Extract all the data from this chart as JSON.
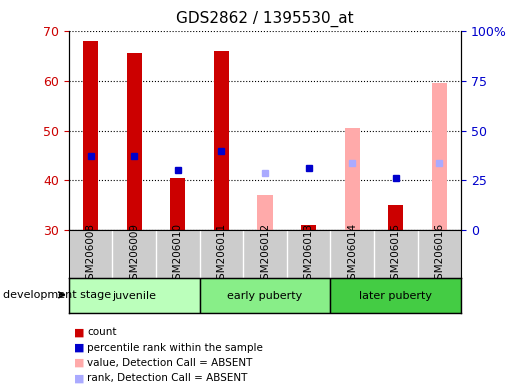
{
  "title": "GDS2862 / 1395530_at",
  "samples": [
    "GSM206008",
    "GSM206009",
    "GSM206010",
    "GSM206011",
    "GSM206012",
    "GSM206013",
    "GSM206014",
    "GSM206015",
    "GSM206016"
  ],
  "count": {
    "GSM206008": 68,
    "GSM206009": 65.5,
    "GSM206010": 40.5,
    "GSM206011": 66,
    "GSM206012": null,
    "GSM206013": 31,
    "GSM206014": null,
    "GSM206015": 35,
    "GSM206016": null
  },
  "percentile_rank": {
    "GSM206008": 45,
    "GSM206009": 45,
    "GSM206010": 42,
    "GSM206011": 46,
    "GSM206012": null,
    "GSM206013": 42.5,
    "GSM206014": null,
    "GSM206015": 40.5,
    "GSM206016": null
  },
  "value_absent": {
    "GSM206008": null,
    "GSM206009": null,
    "GSM206010": null,
    "GSM206011": null,
    "GSM206012": 37,
    "GSM206013": null,
    "GSM206014": 50.5,
    "GSM206015": null,
    "GSM206016": 59.5
  },
  "rank_absent": {
    "GSM206008": null,
    "GSM206009": null,
    "GSM206010": null,
    "GSM206011": null,
    "GSM206012": 41.5,
    "GSM206013": null,
    "GSM206014": 43.5,
    "GSM206015": null,
    "GSM206016": 43.5
  },
  "ylim": [
    30,
    70
  ],
  "yticks_left": [
    30,
    40,
    50,
    60,
    70
  ],
  "yticks_right": [
    0,
    25,
    50,
    75,
    100
  ],
  "count_color": "#cc0000",
  "percentile_color": "#0000cc",
  "value_absent_color": "#ffaaaa",
  "rank_absent_color": "#aaaaff",
  "bar_width": 0.35,
  "juvenile_color": "#bbffbb",
  "early_color": "#88ee88",
  "later_color": "#44cc44",
  "groups_def": [
    {
      "label": "juvenile",
      "start": 0,
      "end": 2,
      "color": "#bbffbb"
    },
    {
      "label": "early puberty",
      "start": 3,
      "end": 5,
      "color": "#88ee88"
    },
    {
      "label": "later puberty",
      "start": 6,
      "end": 8,
      "color": "#44cc44"
    }
  ],
  "legend_items": [
    {
      "color": "#cc0000",
      "label": "count"
    },
    {
      "color": "#0000cc",
      "label": "percentile rank within the sample"
    },
    {
      "color": "#ffaaaa",
      "label": "value, Detection Call = ABSENT"
    },
    {
      "color": "#aaaaff",
      "label": "rank, Detection Call = ABSENT"
    }
  ]
}
